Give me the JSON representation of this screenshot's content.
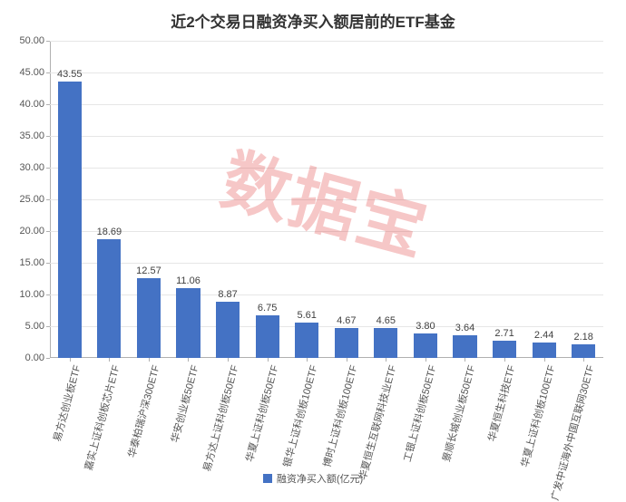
{
  "chart": {
    "type": "bar",
    "title": "近2个交易日融资净买入额居前的ETF基金",
    "title_fontsize": 17,
    "title_color": "#333333",
    "categories": [
      "易方达创业板ETF",
      "嘉实上证科创板芯片ETF",
      "华泰柏瑞沪深300ETF",
      "华安创业板50ETF",
      "易方达上证科创板50ETF",
      "华夏上证科创板50ETF",
      "银华上证科创板100ETF",
      "博时上证科创板100ETF",
      "华夏恒生互联网科技业ETF",
      "工银上证科创板50ETF",
      "景顺长城创业板50ETF",
      "华夏恒生科技ETF",
      "华夏上证科创板100ETF",
      "广发中证海外中国互联网30ETF"
    ],
    "values": [
      43.55,
      18.69,
      12.57,
      11.06,
      8.87,
      6.75,
      5.61,
      4.67,
      4.65,
      3.8,
      3.64,
      2.71,
      2.44,
      2.18
    ],
    "bar_color": "#4472c4",
    "ylim": [
      0,
      50
    ],
    "ytick_step": 5,
    "ytick_decimals": 2,
    "grid_color": "#e6e6e6",
    "axis_color": "#b0b0b0",
    "tick_fontsize": 11,
    "tick_color": "#555555",
    "bar_width_ratio": 0.6,
    "background_color": "#ffffff",
    "value_label_fontsize": 11,
    "value_label_color": "#404040",
    "xlabel_rotation_deg": -75,
    "legend": {
      "label": "融资净买入额(亿元)",
      "swatch_color": "#4472c4",
      "fontsize": 11
    },
    "watermark": {
      "text": "数据宝",
      "color": "#e23b3b",
      "rotation_deg": 15,
      "opacity": 0.28,
      "fontsize": 75
    }
  }
}
